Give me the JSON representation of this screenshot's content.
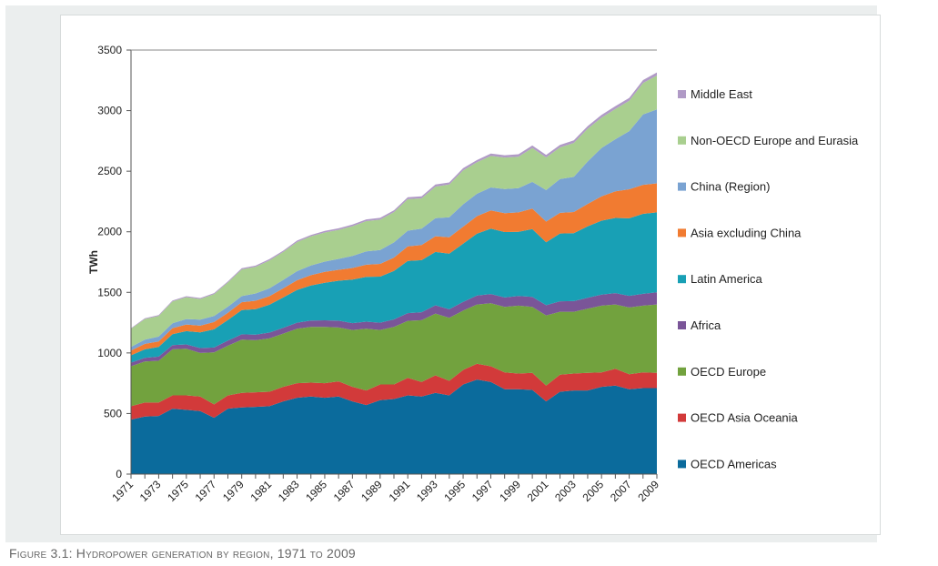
{
  "caption": "Figure 3.1: Hydropower generation by region, 1971 to 2009",
  "chart_data": {
    "type": "area",
    "stacked": true,
    "ylabel": "TWh",
    "xlabel": "",
    "ylim": [
      0,
      3500
    ],
    "yticks": [
      0,
      500,
      1000,
      1500,
      2000,
      2500,
      3000,
      3500
    ],
    "grid": false,
    "legend_position": "right",
    "x": [
      1971,
      1972,
      1973,
      1974,
      1975,
      1976,
      1977,
      1978,
      1979,
      1980,
      1981,
      1982,
      1983,
      1984,
      1985,
      1986,
      1987,
      1988,
      1989,
      1990,
      1991,
      1992,
      1993,
      1994,
      1995,
      1996,
      1997,
      1998,
      1999,
      2000,
      2001,
      2002,
      2003,
      2004,
      2005,
      2006,
      2007,
      2008,
      2009
    ],
    "xtick_labels": [
      "1971",
      "1973",
      "1975",
      "1977",
      "1979",
      "1981",
      "1983",
      "1985",
      "1987",
      "1989",
      "1991",
      "1993",
      "1995",
      "1997",
      "1999",
      "2001",
      "2003",
      "2005",
      "2007",
      "2009"
    ],
    "series": [
      {
        "name": "OECD Americas",
        "color": "#0b6b9c",
        "values": [
          450,
          475,
          480,
          540,
          530,
          520,
          465,
          540,
          550,
          555,
          560,
          600,
          630,
          640,
          630,
          640,
          600,
          570,
          610,
          620,
          650,
          640,
          670,
          650,
          740,
          780,
          760,
          700,
          700,
          695,
          600,
          680,
          690,
          690,
          720,
          730,
          700,
          710,
          710
        ]
      },
      {
        "name": "OECD Asia Oceania",
        "color": "#d23a3a",
        "values": [
          110,
          115,
          110,
          110,
          120,
          120,
          110,
          110,
          120,
          120,
          120,
          120,
          120,
          115,
          120,
          125,
          120,
          120,
          130,
          120,
          145,
          120,
          145,
          120,
          120,
          130,
          130,
          140,
          130,
          140,
          130,
          140,
          140,
          145,
          120,
          140,
          125,
          130,
          125
        ]
      },
      {
        "name": "OECD Europe",
        "color": "#72a23e",
        "values": [
          330,
          340,
          345,
          380,
          385,
          360,
          430,
          410,
          440,
          430,
          440,
          440,
          450,
          460,
          465,
          445,
          470,
          510,
          450,
          475,
          470,
          510,
          510,
          520,
          490,
          490,
          520,
          540,
          560,
          545,
          580,
          520,
          510,
          530,
          550,
          530,
          550,
          550,
          565
        ]
      },
      {
        "name": "Africa",
        "color": "#7a5598",
        "values": [
          30,
          30,
          35,
          35,
          35,
          40,
          40,
          42,
          44,
          46,
          48,
          48,
          50,
          52,
          54,
          56,
          56,
          58,
          60,
          62,
          64,
          66,
          68,
          70,
          72,
          74,
          76,
          78,
          80,
          82,
          84,
          86,
          88,
          90,
          92,
          94,
          96,
          98,
          100
        ]
      },
      {
        "name": "Latin America",
        "color": "#18a0b5",
        "values": [
          60,
          70,
          80,
          90,
          110,
          130,
          150,
          170,
          200,
          210,
          230,
          250,
          270,
          290,
          310,
          330,
          360,
          370,
          380,
          400,
          430,
          430,
          440,
          460,
          480,
          510,
          540,
          540,
          530,
          560,
          520,
          560,
          560,
          590,
          610,
          620,
          640,
          660,
          660
        ]
      },
      {
        "name": "Asia excluding China",
        "color": "#f17b31",
        "values": [
          40,
          45,
          45,
          50,
          55,
          55,
          60,
          60,
          65,
          70,
          70,
          75,
          80,
          85,
          90,
          90,
          95,
          100,
          105,
          110,
          120,
          125,
          130,
          135,
          140,
          145,
          150,
          155,
          160,
          170,
          170,
          170,
          175,
          185,
          200,
          220,
          240,
          240,
          240
        ]
      },
      {
        "name": "China (Region)",
        "color": "#7aa3d2",
        "values": [
          30,
          35,
          40,
          40,
          45,
          50,
          50,
          50,
          50,
          60,
          65,
          70,
          75,
          80,
          85,
          90,
          100,
          110,
          115,
          125,
          130,
          135,
          150,
          165,
          185,
          185,
          190,
          200,
          200,
          220,
          260,
          280,
          290,
          350,
          400,
          430,
          480,
          580,
          610
        ]
      },
      {
        "name": "Non-OECD Europe and Eurasia",
        "color": "#a9cf8f",
        "values": [
          150,
          170,
          170,
          180,
          180,
          170,
          180,
          200,
          220,
          220,
          230,
          230,
          240,
          240,
          240,
          240,
          245,
          250,
          250,
          250,
          260,
          250,
          260,
          270,
          280,
          260,
          260,
          260,
          260,
          280,
          270,
          260,
          280,
          270,
          250,
          250,
          250,
          260,
          280
        ]
      },
      {
        "name": "Middle East",
        "color": "#b09ac6",
        "values": [
          5,
          6,
          7,
          7,
          8,
          8,
          9,
          9,
          10,
          10,
          11,
          11,
          12,
          12,
          13,
          13,
          14,
          14,
          15,
          15,
          16,
          16,
          17,
          17,
          18,
          18,
          19,
          19,
          20,
          20,
          21,
          21,
          22,
          22,
          23,
          23,
          24,
          24,
          25
        ]
      }
    ]
  }
}
